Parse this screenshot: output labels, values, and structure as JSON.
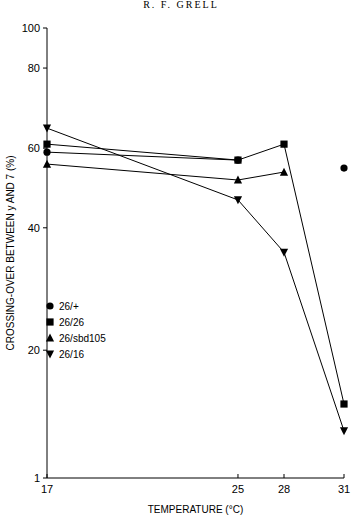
{
  "chart_data": {
    "type": "line",
    "title": "R. F. GRELL",
    "x_label": "TEMPERATURE (°C)",
    "y_label": "CROSSING-OVER BETWEEN y AND 7 (%)",
    "x": [
      17,
      25,
      28,
      31
    ],
    "xlim": [
      17,
      31
    ],
    "xticks": [
      17,
      25,
      28,
      31
    ],
    "ylim": [
      1,
      100
    ],
    "yticks": [
      1,
      20,
      40,
      60,
      80,
      100
    ],
    "grid": false,
    "legend": "lower left",
    "series": [
      {
        "name": "26/+",
        "color": "#000000",
        "marker": "circle",
        "line_style": "solid",
        "values": [
          59,
          57,
          null,
          55
        ]
      },
      {
        "name": "26/26",
        "color": "#000000",
        "marker": "square",
        "line_style": "solid",
        "values": [
          61,
          57,
          61,
          12
        ]
      },
      {
        "name": "26/sbd105",
        "color": "#000000",
        "marker": "triangle",
        "line_style": "solid",
        "values": [
          56,
          52,
          54,
          null
        ]
      },
      {
        "name": "26/16",
        "color": "#000000",
        "marker": "triangle-down",
        "line_style": "solid",
        "values": [
          65,
          47,
          36,
          8
        ]
      }
    ]
  }
}
